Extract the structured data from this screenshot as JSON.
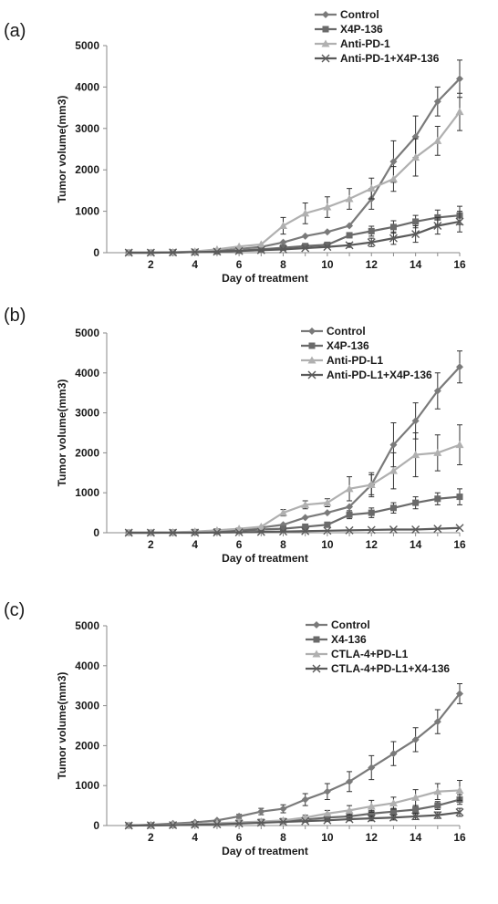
{
  "chart_data": [
    {
      "type": "line",
      "panel_label": "(a)",
      "xlabel": "Day of treatment",
      "ylabel": "Tumor volume(mm3)",
      "ylim": [
        0,
        5000
      ],
      "yticks": [
        0,
        1000,
        2000,
        3000,
        4000,
        5000
      ],
      "xticks": [
        2,
        4,
        6,
        8,
        10,
        12,
        14,
        16
      ],
      "x": [
        1,
        2,
        3,
        4,
        5,
        6,
        7,
        8,
        9,
        10,
        11,
        12,
        13,
        14,
        15,
        16
      ],
      "grid": false,
      "legend_position": "top-right",
      "series": [
        {
          "name": "Control",
          "color": "#7a7a7a",
          "marker": "diamond",
          "values": [
            0,
            0,
            5,
            20,
            50,
            90,
            140,
            250,
            400,
            500,
            650,
            1300,
            2200,
            2800,
            3650,
            4200
          ],
          "errors": [
            0,
            0,
            0,
            0,
            0,
            0,
            0,
            0,
            0,
            0,
            0,
            250,
            500,
            500,
            350,
            450
          ]
        },
        {
          "name": "X4P-136",
          "color": "#6a6a6a",
          "marker": "square",
          "values": [
            0,
            0,
            5,
            15,
            30,
            50,
            80,
            120,
            160,
            190,
            420,
            520,
            620,
            750,
            850,
            900
          ],
          "errors": [
            0,
            0,
            0,
            0,
            0,
            0,
            0,
            0,
            0,
            0,
            0,
            120,
            150,
            150,
            180,
            220
          ]
        },
        {
          "name": "Anti-PD-1",
          "color": "#b0b0b0",
          "marker": "triangle",
          "values": [
            0,
            0,
            10,
            30,
            80,
            150,
            200,
            650,
            950,
            1100,
            1300,
            1550,
            1780,
            2300,
            2700,
            3400
          ],
          "errors": [
            0,
            0,
            0,
            0,
            0,
            0,
            0,
            200,
            250,
            250,
            250,
            250,
            300,
            450,
            350,
            450
          ]
        },
        {
          "name": "Anti-PD-1+X4P-136",
          "color": "#5a5a5a",
          "marker": "x",
          "values": [
            0,
            0,
            5,
            15,
            25,
            40,
            60,
            80,
            110,
            140,
            180,
            250,
            350,
            450,
            650,
            750
          ],
          "errors": [
            0,
            0,
            0,
            0,
            0,
            0,
            0,
            0,
            0,
            0,
            50,
            100,
            150,
            200,
            200,
            250
          ]
        }
      ]
    },
    {
      "type": "line",
      "panel_label": "(b)",
      "xlabel": "Day of treatment",
      "ylabel": "Tumor volume(mm3)",
      "ylim": [
        0,
        5000
      ],
      "yticks": [
        0,
        1000,
        2000,
        3000,
        4000,
        5000
      ],
      "xticks": [
        2,
        4,
        6,
        8,
        10,
        12,
        14,
        16
      ],
      "x": [
        1,
        2,
        3,
        4,
        5,
        6,
        7,
        8,
        9,
        10,
        11,
        12,
        13,
        14,
        15,
        16
      ],
      "grid": false,
      "legend_position": "top-right",
      "series": [
        {
          "name": "Control",
          "color": "#7a7a7a",
          "marker": "diamond",
          "values": [
            0,
            0,
            5,
            20,
            40,
            80,
            130,
            200,
            380,
            500,
            650,
            1200,
            2200,
            2800,
            3550,
            4150
          ],
          "errors": [
            0,
            0,
            0,
            0,
            0,
            0,
            0,
            0,
            0,
            0,
            0,
            300,
            550,
            450,
            450,
            400
          ]
        },
        {
          "name": "X4P-136",
          "color": "#6a6a6a",
          "marker": "square",
          "values": [
            0,
            0,
            5,
            15,
            30,
            50,
            80,
            100,
            150,
            200,
            450,
            500,
            620,
            750,
            850,
            900
          ],
          "errors": [
            0,
            0,
            0,
            0,
            0,
            0,
            0,
            0,
            0,
            0,
            100,
            120,
            130,
            150,
            150,
            200
          ]
        },
        {
          "name": "Anti-PD-L1",
          "color": "#b0b0b0",
          "marker": "triangle",
          "values": [
            0,
            0,
            10,
            30,
            60,
            100,
            150,
            500,
            700,
            750,
            1100,
            1200,
            1550,
            1950,
            2000,
            2200
          ],
          "errors": [
            0,
            0,
            0,
            0,
            0,
            0,
            0,
            80,
            100,
            100,
            300,
            250,
            450,
            550,
            450,
            500
          ]
        },
        {
          "name": "Anti-PD-L1+X4P-136",
          "color": "#5a5a5a",
          "marker": "x",
          "values": [
            0,
            0,
            0,
            0,
            5,
            10,
            20,
            30,
            40,
            50,
            60,
            70,
            80,
            80,
            100,
            120
          ],
          "errors": [
            0,
            0,
            0,
            0,
            0,
            0,
            0,
            0,
            0,
            0,
            0,
            0,
            0,
            0,
            0,
            0
          ]
        }
      ]
    },
    {
      "type": "line",
      "panel_label": "(c)",
      "xlabel": "Day of treatment",
      "ylabel": "Tumor volume(mm3)",
      "ylim": [
        0,
        5000
      ],
      "yticks": [
        0,
        1000,
        2000,
        3000,
        4000,
        5000
      ],
      "xticks": [
        2,
        4,
        6,
        8,
        10,
        12,
        14,
        16
      ],
      "x": [
        1,
        2,
        3,
        4,
        5,
        6,
        7,
        8,
        9,
        10,
        11,
        12,
        13,
        14,
        15,
        16
      ],
      "grid": false,
      "legend_position": "top-right",
      "series": [
        {
          "name": "Control",
          "color": "#7a7a7a",
          "marker": "diamond",
          "values": [
            0,
            20,
            50,
            80,
            130,
            230,
            350,
            420,
            650,
            850,
            1100,
            1450,
            1800,
            2150,
            2600,
            3300
          ],
          "errors": [
            0,
            0,
            0,
            0,
            0,
            50,
            80,
            100,
            150,
            200,
            250,
            300,
            300,
            300,
            300,
            250
          ]
        },
        {
          "name": "X4-136",
          "color": "#6a6a6a",
          "marker": "square",
          "values": [
            0,
            5,
            10,
            30,
            50,
            70,
            90,
            110,
            150,
            200,
            230,
            300,
            350,
            400,
            500,
            650
          ],
          "errors": [
            0,
            0,
            0,
            0,
            0,
            0,
            0,
            0,
            30,
            50,
            60,
            80,
            80,
            100,
            100,
            120
          ]
        },
        {
          "name": "CTLA-4+PD-L1",
          "color": "#b0b0b0",
          "marker": "triangle",
          "values": [
            0,
            10,
            20,
            40,
            60,
            80,
            100,
            130,
            200,
            300,
            380,
            480,
            560,
            700,
            850,
            880
          ],
          "errors": [
            0,
            0,
            0,
            0,
            0,
            0,
            0,
            0,
            60,
            80,
            120,
            150,
            150,
            200,
            200,
            250
          ]
        },
        {
          "name": "CTLA-4+PD-L1+X4-136",
          "color": "#5a5a5a",
          "marker": "x",
          "values": [
            0,
            5,
            10,
            20,
            30,
            50,
            70,
            90,
            110,
            130,
            160,
            180,
            200,
            230,
            260,
            330
          ],
          "errors": [
            0,
            0,
            0,
            0,
            0,
            0,
            0,
            0,
            0,
            30,
            40,
            60,
            60,
            80,
            80,
            100
          ]
        }
      ]
    }
  ]
}
